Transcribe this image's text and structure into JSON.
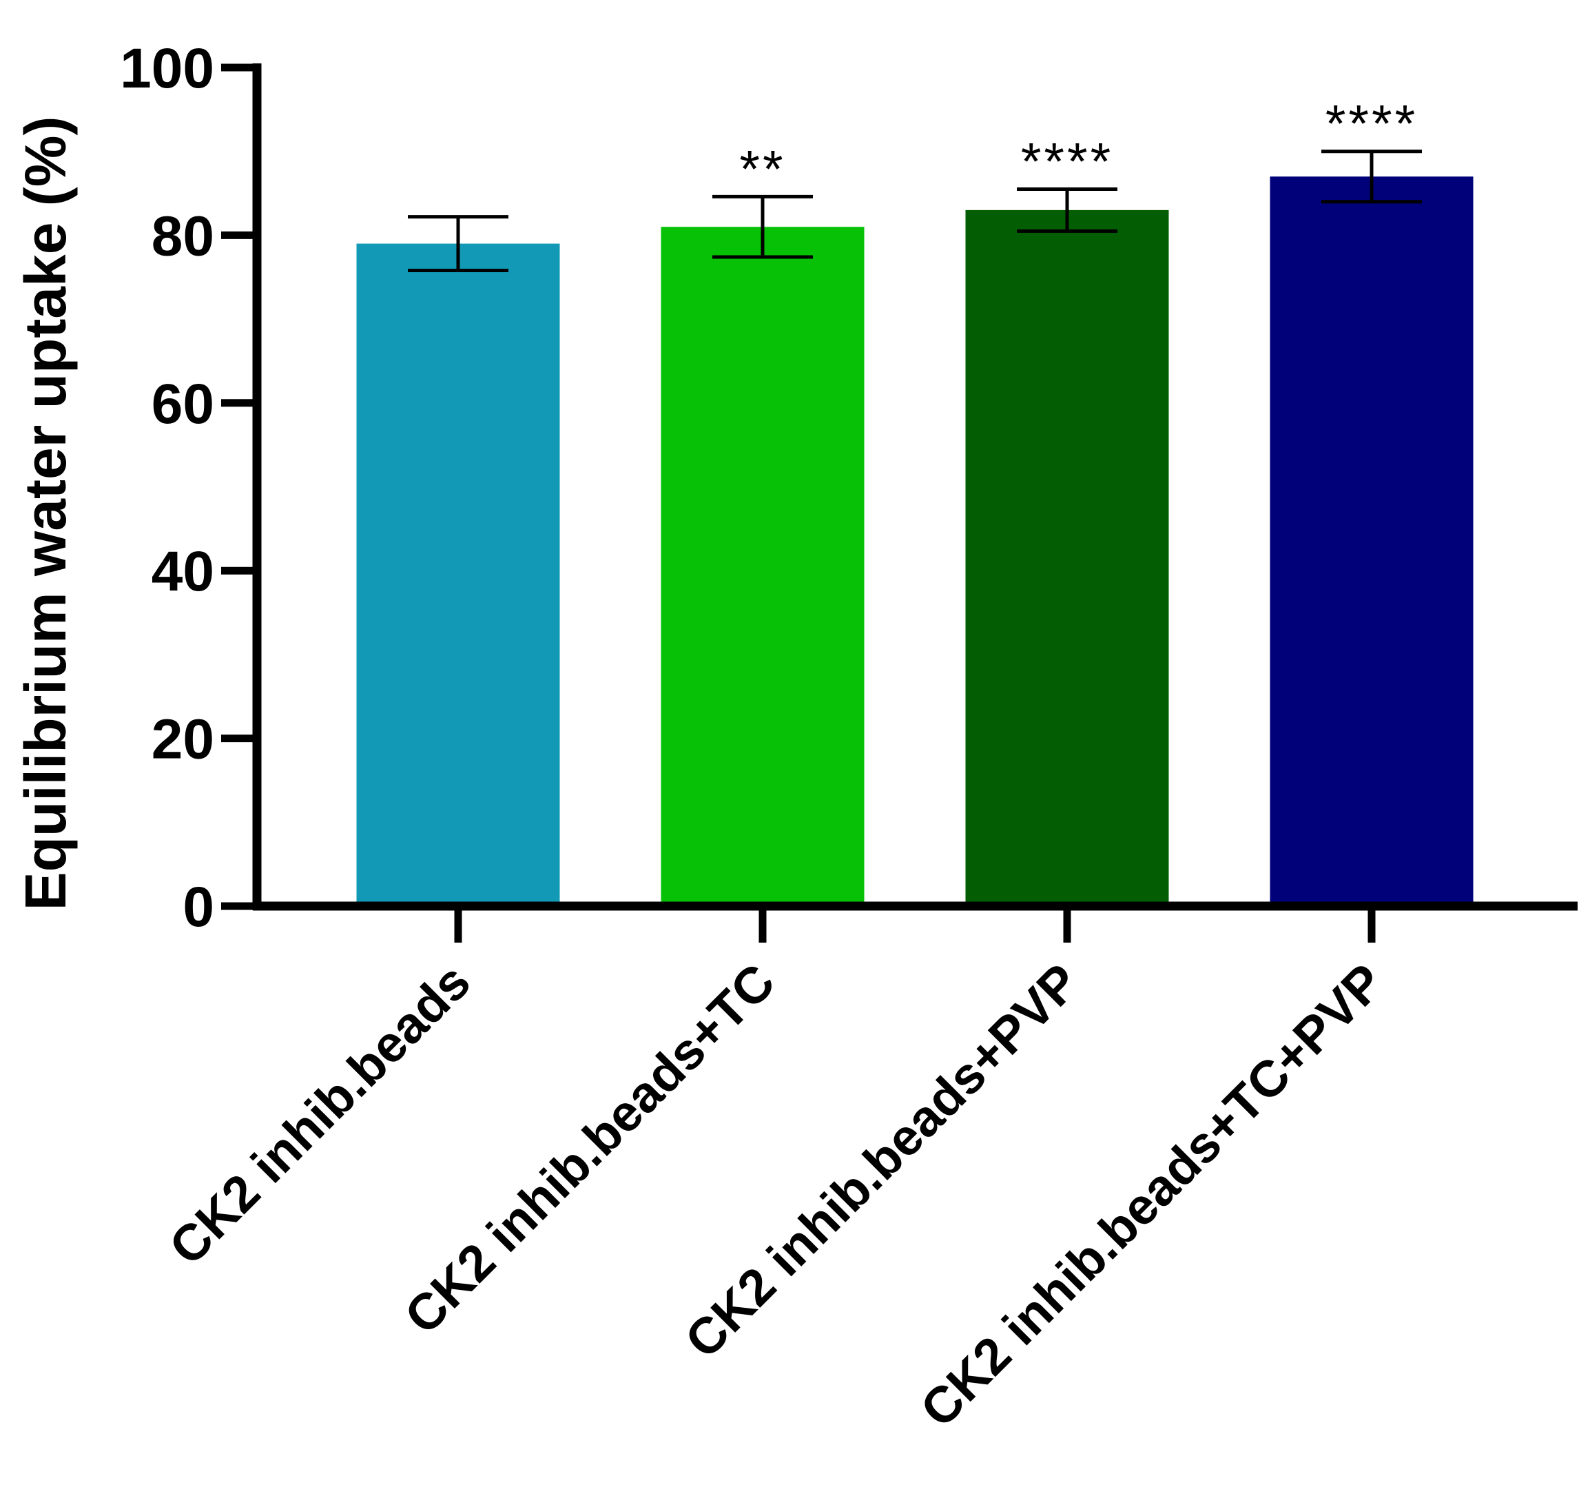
{
  "chart_data": {
    "type": "bar",
    "title": "",
    "xlabel": "",
    "ylabel": "Equilibrium water uptake (%)",
    "ylim": [
      0,
      100
    ],
    "yticks": [
      0,
      20,
      40,
      60,
      80,
      100
    ],
    "categories": [
      "CK2 inhib.beads",
      "CK2 inhib.beads+TC",
      "CK2 inhib.beads+PVP",
      "CK2 inhib.beads+TC+PVP"
    ],
    "values": [
      79,
      81,
      83,
      87
    ],
    "errors": [
      3.2,
      3.6,
      2.5,
      3.0
    ],
    "significance": [
      "",
      "**",
      "****",
      "****"
    ],
    "colors": [
      "#1199B6",
      "#06C106",
      "#035E03",
      "#01017A"
    ],
    "grid": false,
    "legend": "none"
  }
}
